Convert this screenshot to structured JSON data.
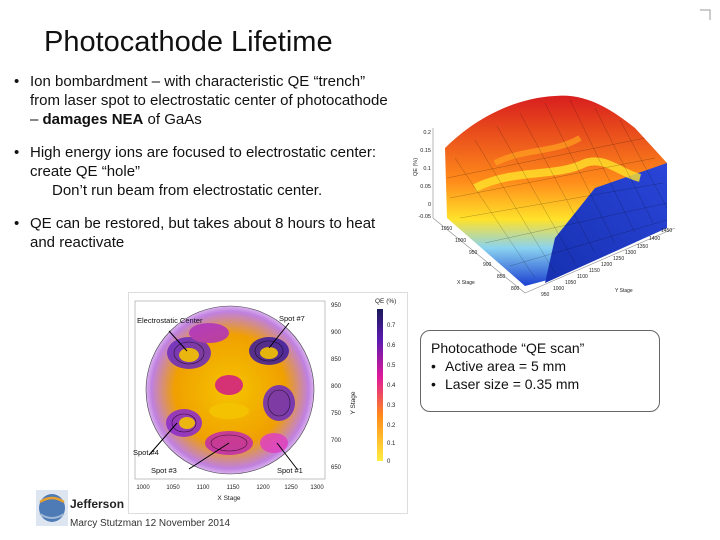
{
  "title": "Photocathode Lifetime",
  "bullets": [
    {
      "pre": "Ion bombardment – with characteristic QE “trench” from laser spot to electrostatic center of photocathode – ",
      "bold": "damages NEA",
      "post": " of GaAs"
    },
    {
      "pre": "High energy ions are focused to electrostatic center: create QE “hole”",
      "extra": "Don’t run beam from electrostatic center."
    },
    {
      "pre": "QE can be restored, but takes about 8 hours to heat and reactivate"
    }
  ],
  "callout": {
    "heading": "Photocathode “QE scan”",
    "items": [
      "Active area = 5 mm",
      "Laser size = 0.35 mm"
    ]
  },
  "surface_plot": {
    "z_ticks": [
      "0.2",
      "0.15",
      "0.1",
      "0.05",
      "0",
      "-0.05"
    ],
    "z_label": "QE (%)",
    "x_label": "X Stage",
    "y_label": "Y Stage",
    "x_ticks": [
      "1050",
      "1000",
      "950",
      "900",
      "850",
      "800"
    ],
    "y_ticks": [
      "950",
      "1000",
      "1050",
      "1100",
      "1150",
      "1200",
      "1250",
      "1300",
      "1350",
      "1400",
      "1450"
    ]
  },
  "qe_map": {
    "labels": {
      "electrostatic": "Electrostatic Center",
      "spot7": "Spot #7",
      "spot4": "Spot #4",
      "spot3": "Spot #3",
      "spot1": "Spot #1"
    },
    "x_label": "X Stage",
    "y_label": "Y Stage",
    "colorbar_title": "QE (%)",
    "x_ticks": [
      "1000",
      "1050",
      "1100",
      "1150",
      "1200",
      "1250",
      "1300"
    ],
    "y_ticks": [
      "950",
      "900",
      "850",
      "800",
      "750",
      "700",
      "650"
    ],
    "cb_ticks": [
      "0.7",
      "0.6",
      "0.5",
      "0.4",
      "0.3",
      "0.2",
      "0.1",
      "0"
    ]
  },
  "footer": {
    "brand": "Jefferson",
    "text": "Marcy Stutzman 12 November 2014"
  },
  "colors": {
    "accent": "#e8a030",
    "logo_blue": "#2a5fa8"
  }
}
